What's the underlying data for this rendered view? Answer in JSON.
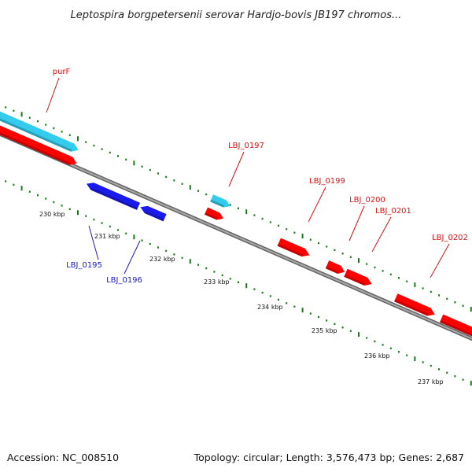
{
  "title": "Leptospira borgpetersenii serovar Hardjo-bovis JB197 chromos...",
  "footer": {
    "accession": "Accession: NC_008510",
    "info": "Topology: circular; Length: 3,576,473 bp; Genes: 2,687"
  },
  "colors": {
    "forward_cds": "#ff0000",
    "forward_cds_highlight": "#33ccee",
    "reverse_cds": "#1a1aee",
    "reverse_label": "#1a1acc",
    "forward_label": "#dd1111",
    "backbone": "#808080",
    "ticks": "#1a7a1a"
  },
  "genes": [
    {
      "label": "purF",
      "strand": "forward"
    },
    {
      "label": "LBJ_0195",
      "strand": "reverse"
    },
    {
      "label": "LBJ_0196",
      "strand": "reverse"
    },
    {
      "label": "LBJ_0197",
      "strand": "forward"
    },
    {
      "label": "LBJ_0199",
      "strand": "forward"
    },
    {
      "label": "LBJ_0200",
      "strand": "forward"
    },
    {
      "label": "LBJ_0201",
      "strand": "forward"
    },
    {
      "label": "LBJ_0202",
      "strand": "forward"
    }
  ],
  "tick_labels": [
    "230 kbp",
    "231 kbp",
    "232 kbp",
    "233 kbp",
    "234 kbp",
    "235 kbp",
    "236 kbp",
    "237 kbp"
  ]
}
